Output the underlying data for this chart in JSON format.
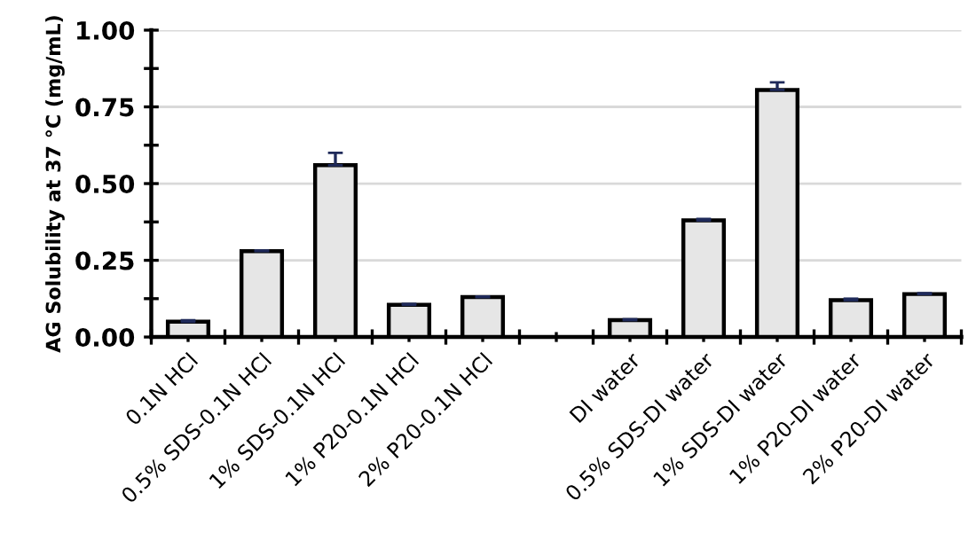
{
  "chart_data": {
    "type": "bar",
    "ylabel": "AG Solubility at 37 °C (mg/mL)",
    "categories": [
      "0.1N HCl",
      "0.5% SDS-0.1N HCl",
      "1% SDS-0.1N HCl",
      "1% P20-0.1N HCl",
      "2% P20-0.1N HCl",
      null,
      "DI water",
      "0.5% SDS-DI water",
      "1% SDS-DI water",
      "1% P20-DI water",
      "2% P20-DI water"
    ],
    "values": [
      0.05,
      0.28,
      0.56,
      0.105,
      0.13,
      null,
      0.055,
      0.38,
      0.805,
      0.12,
      0.14
    ],
    "errors": [
      0.005,
      0.002,
      0.04,
      0.003,
      0.002,
      null,
      0.003,
      0.005,
      0.025,
      0.005,
      0.003
    ],
    "color": "#e6e6e6",
    "ylim": [
      0,
      1.0
    ],
    "yticks": [
      {
        "value": 0,
        "label": "0.00"
      },
      {
        "value": 0.125,
        "label": null
      },
      {
        "value": 0.25,
        "label": "0.25"
      },
      {
        "value": 0.375,
        "label": null
      },
      {
        "value": 0.5,
        "label": "0.50"
      },
      {
        "value": 0.625,
        "label": null
      },
      {
        "value": 0.75,
        "label": "0.75"
      },
      {
        "value": 0.875,
        "label": null
      },
      {
        "value": 1.0,
        "label": "1.00"
      }
    ],
    "grid": "y"
  }
}
